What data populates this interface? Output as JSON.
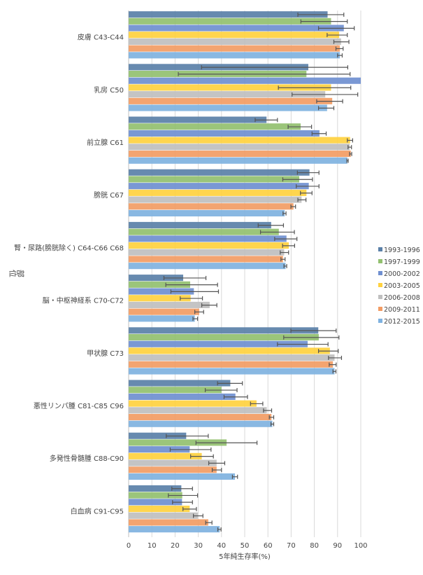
{
  "chart_data": {
    "type": "bar",
    "orientation": "horizontal",
    "xlabel": "5年純生存率(%)",
    "ylabel": "部位",
    "xlim": [
      0,
      100
    ],
    "xticks": [
      0,
      10,
      20,
      30,
      40,
      50,
      60,
      70,
      80,
      90,
      100
    ],
    "grid": true,
    "legend_position": "right",
    "error_bars": true,
    "categories": [
      "皮膚 C43-C44",
      "乳房 C50",
      "前立腺 C61",
      "膀胱 C67",
      "腎・尿路(膀胱除く) C64-C66 C68",
      "脳・中枢神経系 C70-C72",
      "甲状腺 C73",
      "悪性リンパ腫 C81-C85 C96",
      "多発性骨髄腫 C88-C90",
      "白血病 C91-C95"
    ],
    "series": [
      {
        "name": "1993-1996",
        "color": "#5a80a8",
        "values": [
          85.7,
          77.4,
          59.4,
          77.9,
          61.4,
          23.5,
          81.7,
          43.8,
          24.8,
          22.7
        ],
        "lower": [
          72.9,
          31.4,
          54.5,
          72.7,
          55.8,
          15.2,
          69.9,
          38.3,
          16.2,
          18.6
        ],
        "upper": [
          92.7,
          94.4,
          64.1,
          82.0,
          66.7,
          33.3,
          89.4,
          49.0,
          34.3,
          27.5
        ]
      },
      {
        "name": "1997-1999",
        "color": "#92c06f",
        "values": [
          87.2,
          76.6,
          74.1,
          73.5,
          64.7,
          26.5,
          81.9,
          40.0,
          42.2,
          23.1
        ],
        "lower": [
          74.2,
          21.4,
          68.7,
          66.4,
          56.8,
          16.0,
          66.8,
          33.0,
          29.0,
          17.1
        ],
        "upper": [
          94.2,
          95.4,
          78.8,
          79.2,
          71.4,
          38.3,
          90.6,
          46.7,
          55.3,
          29.7
        ]
      },
      {
        "name": "2000-2002",
        "color": "#6f8fd0",
        "values": [
          92.7,
          100,
          82.2,
          77.6,
          68.0,
          28.1,
          77.1,
          46.0,
          26.3,
          23.0
        ],
        "lower": [
          81.8,
          100,
          79.0,
          72.2,
          62.9,
          18.2,
          64.1,
          41.1,
          17.9,
          18.9
        ],
        "upper": [
          97.2,
          100,
          85.1,
          82.0,
          72.5,
          38.7,
          85.9,
          51.2,
          35.5,
          27.5
        ]
      },
      {
        "name": "2003-2005",
        "color": "#ffd13f",
        "values": [
          90.7,
          87.2,
          95.4,
          76.6,
          69.0,
          26.7,
          86.7,
          55.1,
          31.5,
          26.3
        ],
        "lower": [
          85.5,
          64.5,
          94.2,
          74.0,
          66.3,
          22.2,
          81.8,
          52.5,
          26.7,
          23.4
        ],
        "upper": [
          94.2,
          95.7,
          96.5,
          79.0,
          71.5,
          31.8,
          90.3,
          57.8,
          36.5,
          29.2
        ]
      },
      {
        "name": "2006-2008",
        "color": "#bfbfbf",
        "values": [
          91.5,
          84.7,
          95.2,
          74.5,
          67.0,
          34.9,
          88.7,
          59.5,
          37.9,
          29.8
        ],
        "lower": [
          88.4,
          70.4,
          94.5,
          72.9,
          65.3,
          31.5,
          86.1,
          58.1,
          34.5,
          27.9
        ],
        "upper": [
          94.9,
          98.7,
          96.0,
          76.4,
          68.9,
          38.0,
          91.7,
          61.6,
          41.4,
          32.0
        ]
      },
      {
        "name": "2009-2011",
        "color": "#f29c64",
        "values": [
          91.0,
          87.7,
          95.7,
          71.0,
          66.5,
          30.4,
          88.0,
          61.5,
          37.9,
          34.3
        ],
        "lower": [
          89.3,
          81.0,
          95.2,
          69.9,
          65.6,
          28.5,
          86.4,
          60.6,
          36.0,
          33.2
        ],
        "upper": [
          92.4,
          92.2,
          96.1,
          71.9,
          67.4,
          32.3,
          89.4,
          62.5,
          40.0,
          35.9
        ]
      },
      {
        "name": "2012-2015",
        "color": "#7fb2e0",
        "values": [
          91.0,
          85.5,
          94.2,
          67.2,
          67.6,
          28.5,
          88.7,
          61.9,
          45.8,
          39.2
        ],
        "lower": [
          90.0,
          81.8,
          94.0,
          66.5,
          66.9,
          27.7,
          88.0,
          61.3,
          44.7,
          38.4
        ],
        "upper": [
          92.0,
          88.4,
          94.6,
          67.8,
          68.1,
          29.7,
          89.3,
          62.5,
          46.9,
          39.8
        ]
      }
    ]
  }
}
